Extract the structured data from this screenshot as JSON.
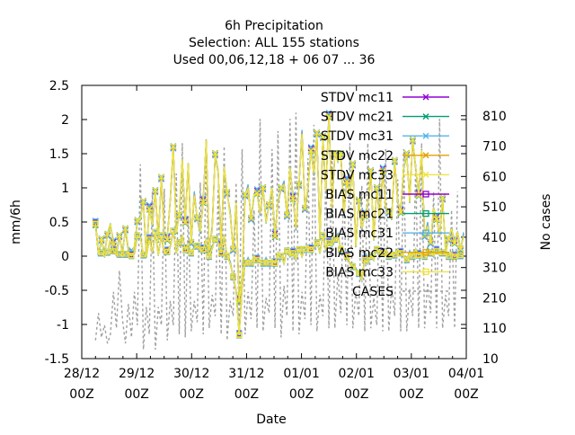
{
  "chart_data": {
    "type": "line",
    "title_lines": [
      "6h Precipitation",
      "Selection: ALL    155 stations",
      "Used  00,06,12,18 + 06 07 ... 36"
    ],
    "xlabel": "Date",
    "ylabel": "mm/6h",
    "y2label": "No cases",
    "ylim": [
      -1.5,
      2.5
    ],
    "y2lim": [
      10,
      910
    ],
    "yticks": [
      "-1.5",
      "-1",
      "-0.5",
      "0",
      "0.5",
      "1",
      "1.5",
      "2",
      "2.5"
    ],
    "y2ticks": [
      "10",
      "110",
      "210",
      "310",
      "410",
      "510",
      "610",
      "710",
      "810"
    ],
    "xticks": [
      {
        "date": "28/12",
        "hour": "00Z"
      },
      {
        "date": "29/12",
        "hour": "00Z"
      },
      {
        "date": "30/12",
        "hour": "00Z"
      },
      {
        "date": "31/12",
        "hour": "00Z"
      },
      {
        "date": "01/01",
        "hour": "00Z"
      },
      {
        "date": "02/01",
        "hour": "00Z"
      },
      {
        "date": "03/01",
        "hour": "00Z"
      },
      {
        "date": "04/01",
        "hour": "00Z"
      }
    ],
    "x_days_span": [
      0,
      7
    ],
    "legend_position": "top-right",
    "series": [
      {
        "name": "STDV mc11",
        "color": "#9400d3",
        "marker": "x",
        "kind": "stdv"
      },
      {
        "name": "STDV mc21",
        "color": "#009e73",
        "marker": "x",
        "kind": "stdv"
      },
      {
        "name": "STDV mc31",
        "color": "#56b4e9",
        "marker": "x",
        "kind": "stdv"
      },
      {
        "name": "STDV mc22",
        "color": "#e69f00",
        "marker": "x",
        "kind": "stdv"
      },
      {
        "name": "STDV mc33",
        "color": "#f0e442",
        "marker": "x",
        "kind": "stdv"
      },
      {
        "name": "BIAS mc11",
        "color": "#9400d3",
        "marker": "square",
        "kind": "bias"
      },
      {
        "name": "BIAS mc21",
        "color": "#009e73",
        "marker": "square",
        "kind": "bias"
      },
      {
        "name": "BIAS mc31",
        "color": "#56b4e9",
        "marker": "square",
        "kind": "bias"
      },
      {
        "name": "BIAS mc22",
        "color": "#e69f00",
        "marker": "square",
        "kind": "bias"
      },
      {
        "name": "BIAS mc33",
        "color": "#f0e442",
        "marker": "square",
        "kind": "bias"
      },
      {
        "name": "CASES",
        "color": "#a0a0a0",
        "marker": "none",
        "kind": "cases"
      }
    ],
    "stdv_values": [
      0.47,
      0.02,
      0.25,
      0.02,
      0.32,
      0.47,
      0.18,
      0.05,
      0.3,
      0.03,
      0.4,
      0.1,
      0.04,
      0.14,
      0.52,
      0.55,
      0.8,
      0.0,
      0.7,
      0.45,
      0.96,
      0.22,
      1.15,
      0.3,
      0.25,
      0.83,
      1.6,
      0.35,
      0.6,
      1.42,
      0.5,
      1.35,
      0.2,
      0.9,
      0.56,
      0.35,
      0.8,
      1.7,
      0.1,
      0.4,
      1.5,
      1.25,
      0.15,
      1.3,
      0.93,
      0.62,
      0.1,
      0.78,
      -0.65,
      -0.3,
      0.9,
      1.0,
      0.55,
      0.9,
      0.93,
      0.62,
      1.0,
      0.5,
      0.75,
      1.0,
      0.3,
      0.8,
      1.0,
      1.05,
      0.6,
      1.3,
      0.85,
      0.4,
      1.05,
      1.8,
      0.7,
      1.0,
      1.55,
      1.2,
      1.8,
      0.25,
      1.75,
      0.95,
      2.05,
      0.7,
      1.5,
      1.4,
      1.5,
      0.62,
      1.1,
      0.9,
      1.35,
      0.15,
      0.82,
      0.4,
      0.6,
      0.75,
      1.25,
      0.25,
      1.0,
      0.55,
      1.25,
      0.72,
      0.65,
      0.55,
      1.4,
      0.8,
      0.65,
      1.3,
      1.5,
      0.8,
      1.7,
      1.3,
      0.9,
      1.55,
      0.3,
      0.45,
      0.2,
      0.7,
      0.55,
      0.3,
      0.85,
      0.05,
      0.25,
      0.4,
      0.2,
      0.35,
      0.1,
      0.3
    ],
    "bias_values": [
      0.48,
      0.03,
      0.05,
      0.0,
      0.06,
      0.25,
      0.08,
      0.02,
      0.03,
      0.0,
      0.03,
      0.06,
      0.01,
      0.05,
      0.3,
      0.28,
      0.02,
      0.0,
      0.25,
      0.05,
      0.35,
      0.02,
      0.3,
      0.04,
      0.07,
      0.15,
      0.37,
      0.05,
      0.2,
      0.3,
      0.1,
      0.18,
      0.05,
      0.12,
      0.15,
      0.08,
      0.1,
      0.25,
      0.0,
      0.12,
      0.25,
      0.2,
      0.05,
      0.3,
      0.0,
      -0.1,
      -0.3,
      -0.5,
      -1.15,
      -0.45,
      -0.1,
      -0.05,
      -0.1,
      0.0,
      -0.05,
      -0.08,
      -0.1,
      -0.05,
      -0.1,
      -0.05,
      -0.1,
      0.05,
      0.0,
      -0.1,
      0.08,
      0.0,
      0.05,
      -0.05,
      0.1,
      0.0,
      0.1,
      0.15,
      0.1,
      0.12,
      0.2,
      0.05,
      0.3,
      0.1,
      0.2,
      0.15,
      0.25,
      0.3,
      0.1,
      0.05,
      0.0,
      -0.1,
      -0.15,
      -0.2,
      -0.25,
      -0.35,
      -0.05,
      -0.1,
      0.0,
      -0.05,
      0.1,
      0.0,
      0.05,
      0.1,
      0.0,
      0.05,
      0.02,
      0.1,
      0.05,
      0.0,
      -0.05,
      0.05,
      0.0,
      0.1,
      0.02,
      0.05,
      0.0,
      0.1,
      0.05,
      0.0,
      0.08,
      0.02,
      0.05,
      0.03,
      0.0,
      0.05,
      0.0,
      0.02,
      0.01,
      0.0
    ],
    "cases_values": [
      70,
      160,
      80,
      120,
      60,
      90,
      230,
      110,
      300,
      140,
      60,
      190,
      80,
      230,
      120,
      650,
      40,
      180,
      90,
      560,
      40,
      180,
      120,
      570,
      70,
      200,
      120,
      620,
      90,
      720,
      80,
      480,
      100,
      200,
      130,
      590,
      90,
      720,
      110,
      220,
      150,
      570,
      90,
      710,
      70,
      200,
      150,
      590,
      110,
      700,
      90,
      230,
      140,
      500,
      110,
      800,
      100,
      210,
      160,
      700,
      110,
      760,
      80,
      250,
      150,
      800,
      100,
      820,
      90,
      230,
      140,
      670,
      120,
      780,
      100,
      220,
      150,
      620,
      110,
      700,
      110,
      290,
      160,
      610,
      120,
      720,
      110,
      230,
      150,
      580,
      100,
      720,
      110,
      210,
      120,
      610,
      100,
      700,
      100,
      250,
      150,
      600,
      100,
      700,
      100,
      240,
      150,
      650,
      110,
      720,
      110,
      260,
      160,
      560,
      110,
      800,
      110,
      220,
      150,
      500,
      110,
      560
    ]
  }
}
